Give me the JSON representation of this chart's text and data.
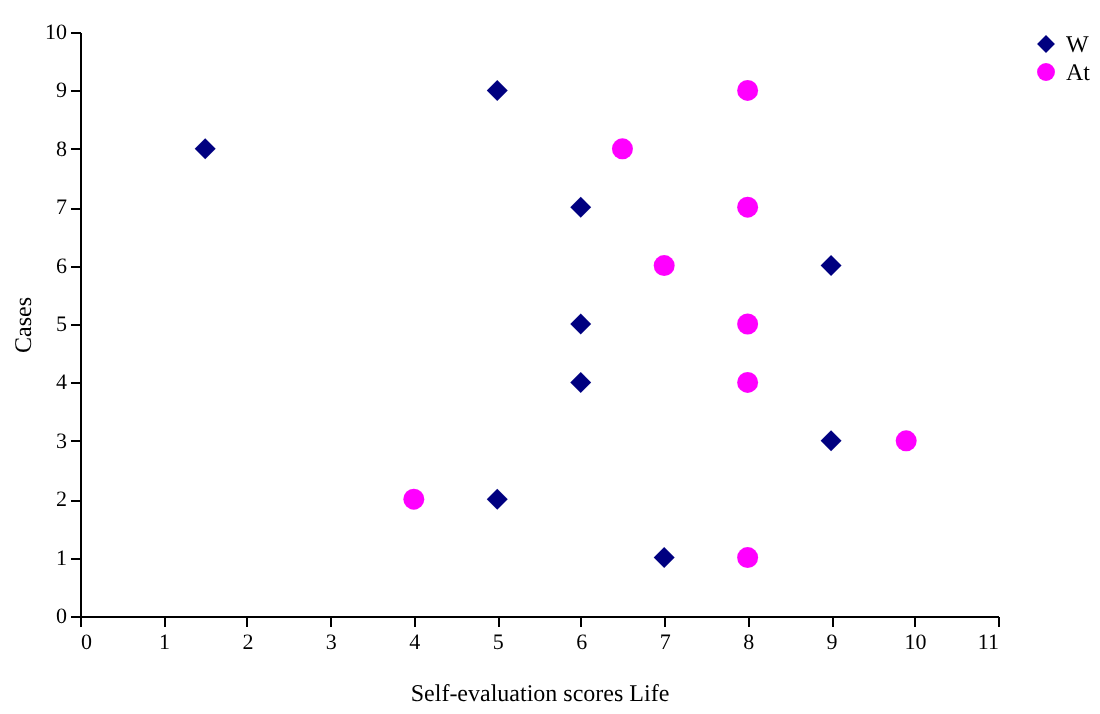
{
  "chart_data": {
    "type": "scatter",
    "xlabel": "Self-evaluation scores  Life",
    "ylabel": "Cases",
    "series": [
      {
        "name": "W",
        "color": "#000080",
        "marker": "diamond",
        "x": [
          1.5,
          5,
          6,
          9,
          6,
          6,
          9,
          5,
          7
        ],
        "values": [
          8,
          9,
          7,
          6,
          5,
          4,
          3,
          2,
          1
        ]
      },
      {
        "name": "At",
        "color": "#ff00ff",
        "marker": "circle",
        "x": [
          8,
          6.5,
          8,
          7,
          8,
          8,
          9.9,
          4,
          8
        ],
        "values": [
          9,
          8,
          7,
          6,
          5,
          4,
          3,
          2,
          1
        ]
      }
    ],
    "xlim": [
      0,
      11
    ],
    "xticks": [
      0,
      1,
      2,
      3,
      4,
      5,
      6,
      7,
      8,
      9,
      10,
      11
    ],
    "ylim": [
      0,
      10
    ],
    "yticks": [
      0,
      1,
      2,
      3,
      4,
      5,
      6,
      7,
      8,
      9,
      10
    ],
    "grid": false,
    "legend": "right"
  }
}
